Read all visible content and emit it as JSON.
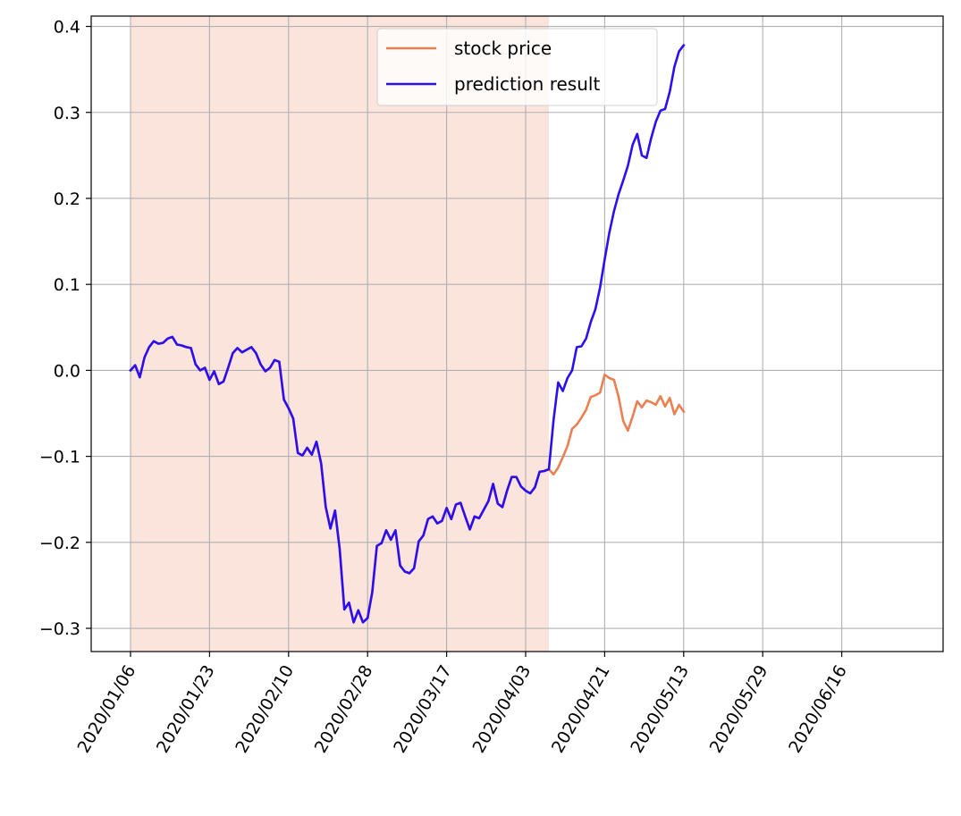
{
  "chart_data": {
    "type": "line",
    "title": "",
    "xlabel": "",
    "ylabel": "",
    "x_tick_labels": [
      "2020/01/06",
      "2020/01/23",
      "2020/02/10",
      "2020/02/28",
      "2020/03/17",
      "2020/04/03",
      "2020/04/21",
      "2020/05/13",
      "2020/05/29",
      "2020/06/16"
    ],
    "y_tick_labels": [
      "0.4",
      "0.3",
      "0.2",
      "0.1",
      "0.0",
      "−0.1",
      "−0.2",
      "−0.3"
    ],
    "ylim": [
      -0.327,
      0.412
    ],
    "grid": true,
    "legend_position": "top-center",
    "shaded_region": {
      "from_index": 0,
      "to_index": 90,
      "color": "#fbe4dc"
    },
    "series": [
      {
        "name": "stock price",
        "color": "#ea7f52",
        "values": [
          0.0,
          0.006,
          -0.008,
          0.015,
          0.027,
          0.034,
          0.031,
          0.032,
          0.037,
          0.039,
          0.03,
          0.029,
          0.027,
          0.026,
          0.007,
          0.0,
          0.003,
          -0.011,
          -0.001,
          -0.016,
          -0.013,
          0.003,
          0.02,
          0.026,
          0.021,
          0.024,
          0.027,
          0.02,
          0.007,
          -0.001,
          0.003,
          0.012,
          0.01,
          -0.034,
          -0.044,
          -0.056,
          -0.096,
          -0.099,
          -0.09,
          -0.098,
          -0.083,
          -0.108,
          -0.159,
          -0.184,
          -0.163,
          -0.208,
          -0.278,
          -0.27,
          -0.293,
          -0.279,
          -0.293,
          -0.288,
          -0.258,
          -0.204,
          -0.201,
          -0.186,
          -0.197,
          -0.186,
          -0.227,
          -0.234,
          -0.236,
          -0.23,
          -0.199,
          -0.192,
          -0.173,
          -0.17,
          -0.178,
          -0.175,
          -0.16,
          -0.173,
          -0.156,
          -0.154,
          -0.17,
          -0.185,
          -0.17,
          -0.172,
          -0.162,
          -0.152,
          -0.132,
          -0.155,
          -0.159,
          -0.14,
          -0.124,
          -0.124,
          -0.135,
          -0.14,
          -0.143,
          -0.136,
          -0.118,
          -0.117,
          -0.115,
          -0.121,
          -0.113,
          -0.101,
          -0.088,
          -0.068,
          -0.063,
          -0.055,
          -0.046,
          -0.031,
          -0.029,
          -0.026,
          -0.005,
          -0.009,
          -0.011,
          -0.031,
          -0.059,
          -0.07,
          -0.054,
          -0.036,
          -0.043,
          -0.035,
          -0.037,
          -0.04,
          -0.03,
          -0.042,
          -0.032,
          -0.051,
          -0.04,
          -0.048
        ]
      },
      {
        "name": "prediction result",
        "color": "#2b0ff0",
        "values": [
          0.0,
          0.006,
          -0.008,
          0.015,
          0.027,
          0.034,
          0.031,
          0.032,
          0.037,
          0.039,
          0.03,
          0.029,
          0.027,
          0.026,
          0.007,
          0.0,
          0.003,
          -0.011,
          -0.001,
          -0.016,
          -0.013,
          0.003,
          0.02,
          0.026,
          0.021,
          0.024,
          0.027,
          0.02,
          0.007,
          -0.001,
          0.003,
          0.012,
          0.01,
          -0.034,
          -0.044,
          -0.056,
          -0.096,
          -0.099,
          -0.09,
          -0.098,
          -0.083,
          -0.108,
          -0.159,
          -0.184,
          -0.163,
          -0.208,
          -0.278,
          -0.27,
          -0.293,
          -0.279,
          -0.293,
          -0.288,
          -0.258,
          -0.204,
          -0.201,
          -0.186,
          -0.197,
          -0.186,
          -0.227,
          -0.234,
          -0.236,
          -0.23,
          -0.199,
          -0.192,
          -0.173,
          -0.17,
          -0.178,
          -0.175,
          -0.16,
          -0.173,
          -0.156,
          -0.154,
          -0.17,
          -0.185,
          -0.17,
          -0.172,
          -0.162,
          -0.152,
          -0.132,
          -0.155,
          -0.159,
          -0.14,
          -0.124,
          -0.124,
          -0.135,
          -0.14,
          -0.143,
          -0.136,
          -0.118,
          -0.117,
          -0.115,
          -0.058,
          -0.014,
          -0.024,
          -0.009,
          0.0,
          0.027,
          0.028,
          0.037,
          0.056,
          0.071,
          0.096,
          0.129,
          0.16,
          0.185,
          0.205,
          0.221,
          0.238,
          0.262,
          0.275,
          0.25,
          0.247,
          0.27,
          0.289,
          0.302,
          0.304,
          0.324,
          0.353,
          0.371,
          0.378
        ]
      }
    ]
  }
}
